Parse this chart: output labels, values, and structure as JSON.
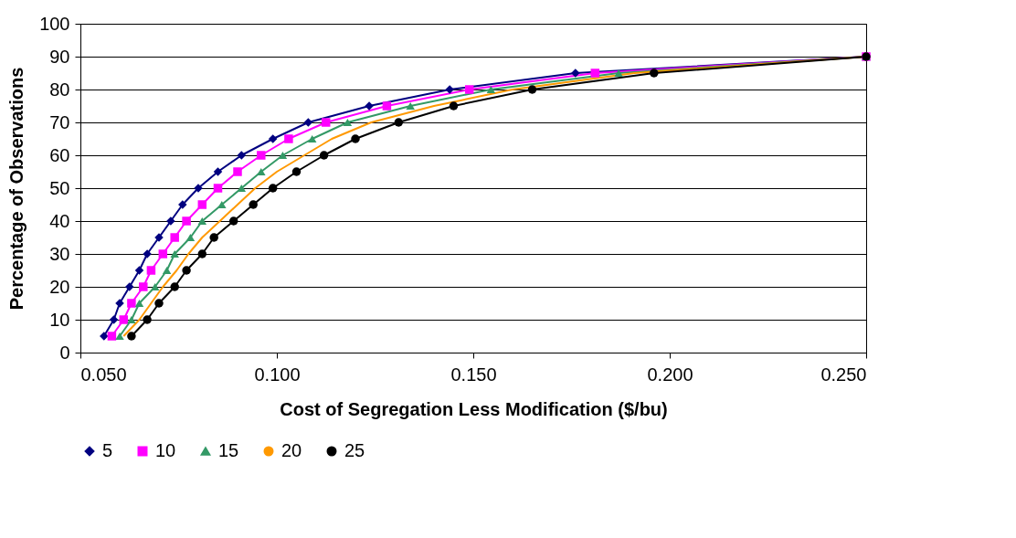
{
  "chart_data": {
    "type": "line",
    "xlabel": "Cost of Segregation Less Modification ($/bu)",
    "ylabel": "Percentage of Observations",
    "xlim": [
      0.05,
      0.25
    ],
    "xticks": [
      {
        "value": 0.05,
        "label": "0.050"
      },
      {
        "value": 0.1,
        "label": "0.100"
      },
      {
        "value": 0.15,
        "label": "0.150"
      },
      {
        "value": 0.2,
        "label": "0.200"
      },
      {
        "value": 0.25,
        "label": "0.250"
      }
    ],
    "ylim": [
      0,
      100
    ],
    "yticks": [
      0,
      10,
      20,
      30,
      40,
      50,
      60,
      70,
      80,
      90,
      100
    ],
    "grid": "y",
    "legend": "bottom",
    "line_style": "solid",
    "series": [
      {
        "name": "5",
        "color": "#000080",
        "marker": "diamond",
        "x": [
          0.056,
          0.0585,
          0.06,
          0.0625,
          0.065,
          0.067,
          0.07,
          0.073,
          0.076,
          0.08,
          0.085,
          0.091,
          0.099,
          0.108,
          0.1235,
          0.144,
          0.176,
          0.25
        ],
        "values": [
          5,
          10,
          15,
          20,
          25,
          30,
          35,
          40,
          45,
          50,
          55,
          60,
          65,
          70,
          75,
          80,
          85,
          90
        ]
      },
      {
        "name": "10",
        "color": "#ff00ff",
        "marker": "square",
        "x": [
          0.058,
          0.061,
          0.063,
          0.066,
          0.068,
          0.071,
          0.074,
          0.077,
          0.081,
          0.085,
          0.09,
          0.096,
          0.103,
          0.1125,
          0.128,
          0.149,
          0.181,
          0.25
        ],
        "values": [
          5,
          10,
          15,
          20,
          25,
          30,
          35,
          40,
          45,
          50,
          55,
          60,
          65,
          70,
          75,
          80,
          85,
          90
        ]
      },
      {
        "name": "15",
        "color": "#339966",
        "marker": "triangle",
        "x": [
          0.06,
          0.063,
          0.065,
          0.069,
          0.072,
          0.074,
          0.078,
          0.081,
          0.086,
          0.091,
          0.096,
          0.1015,
          0.109,
          0.118,
          0.134,
          0.1545,
          0.187,
          0.25
        ],
        "values": [
          5,
          10,
          15,
          20,
          25,
          30,
          35,
          40,
          45,
          50,
          55,
          60,
          65,
          70,
          75,
          80,
          85,
          90
        ]
      },
      {
        "name": "20",
        "color": "#ff9900",
        "marker": "none",
        "x": [
          0.061,
          0.065,
          0.068,
          0.071,
          0.0745,
          0.0775,
          0.081,
          0.0855,
          0.09,
          0.0945,
          0.1,
          0.107,
          0.114,
          0.124,
          0.14,
          0.16,
          0.191,
          0.25
        ],
        "values": [
          5,
          10,
          15,
          20,
          25,
          30,
          35,
          40,
          45,
          50,
          55,
          60,
          65,
          70,
          75,
          80,
          85,
          90
        ]
      },
      {
        "name": "25",
        "color": "#000000",
        "marker": "circle",
        "x": [
          0.063,
          0.067,
          0.07,
          0.074,
          0.077,
          0.081,
          0.084,
          0.089,
          0.094,
          0.099,
          0.105,
          0.112,
          0.12,
          0.131,
          0.145,
          0.165,
          0.196,
          0.25
        ],
        "values": [
          5,
          10,
          15,
          20,
          25,
          30,
          35,
          40,
          45,
          50,
          55,
          60,
          65,
          70,
          75,
          80,
          85,
          90
        ]
      }
    ]
  }
}
